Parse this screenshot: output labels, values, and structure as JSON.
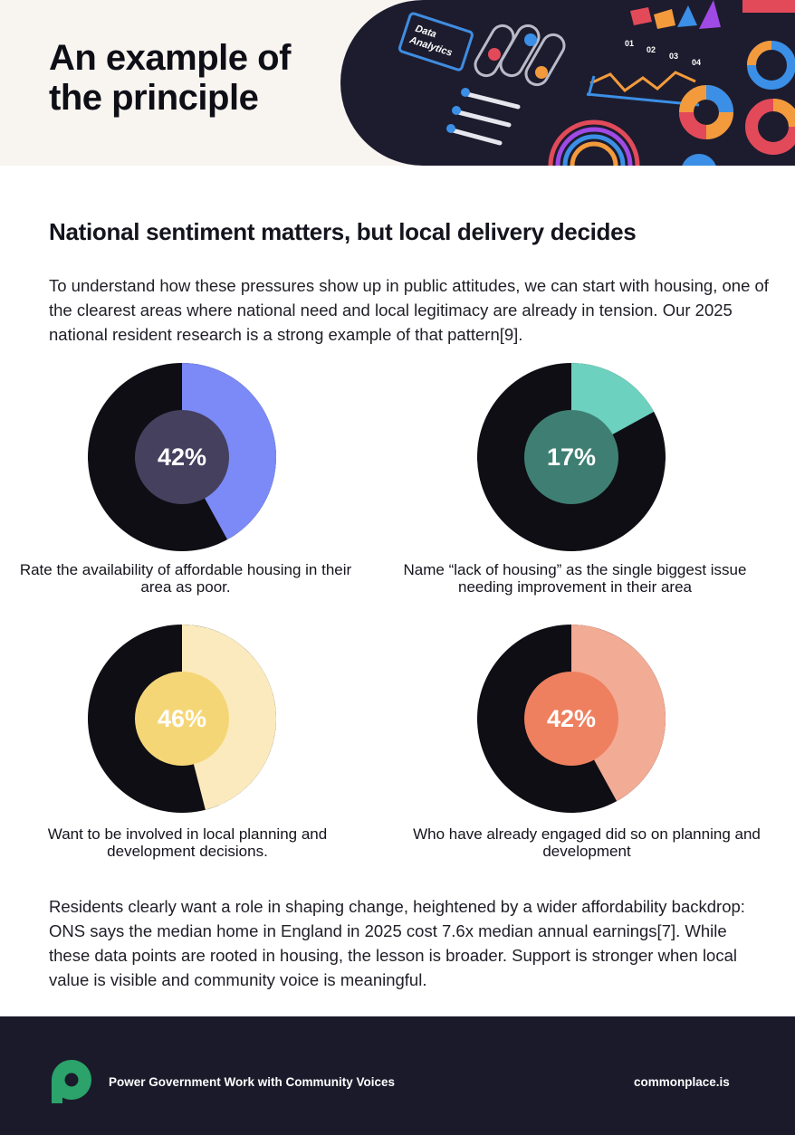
{
  "header": {
    "title": "An example of the principle",
    "hero_labels": [
      "Data",
      "Analytics"
    ],
    "hero_numbers": [
      "01",
      "02",
      "03",
      "04"
    ]
  },
  "section": {
    "heading": "National sentiment matters, but local delivery decides",
    "intro": "To understand how these pressures show up in public attitudes, we can start with housing, one of the clearest areas where national need and local legitimacy are already in tension. Our 2025 national resident research is a strong example of that pattern[9].",
    "conclusion": "Residents clearly want a role in shaping change, heightened by a wider affordability backdrop: ONS says the median home in England in 2025 cost 7.6x median annual earnings[7]. While these data points are rooted in housing, the lesson is broader. Support is stronger when local value is visible and community voice is meaningful."
  },
  "chart_data": [
    {
      "type": "pie",
      "value": 42,
      "label": "42%",
      "caption": "Rate the availability of affordable housing in their area as poor.",
      "colors": {
        "slice": "#7b8af6",
        "rest": "#0e0e14",
        "center": "#45405e"
      }
    },
    {
      "type": "pie",
      "value": 17,
      "label": "17%",
      "caption": "Name “lack of housing” as the single biggest issue needing improvement in their area",
      "colors": {
        "slice": "#6dd1bf",
        "rest": "#0e0e14",
        "center": "#3f7f73"
      }
    },
    {
      "type": "pie",
      "value": 46,
      "label": "46%",
      "caption": "Want to be involved in local planning and development decisions.",
      "colors": {
        "slice": "#faeabd",
        "rest": "#0e0e14",
        "center": "#f5d677"
      }
    },
    {
      "type": "pie",
      "value": 42,
      "label": "42%",
      "caption": "Who have already engaged did so on planning and development",
      "colors": {
        "slice": "#f2ab94",
        "rest": "#0e0e14",
        "center": "#ee805f"
      }
    }
  ],
  "footer": {
    "tagline": "Power Government Work with Community Voices",
    "website": "commonplace.is",
    "logo_icon": "commonplace-logo-icon",
    "logo_color": "#2ba36a"
  }
}
